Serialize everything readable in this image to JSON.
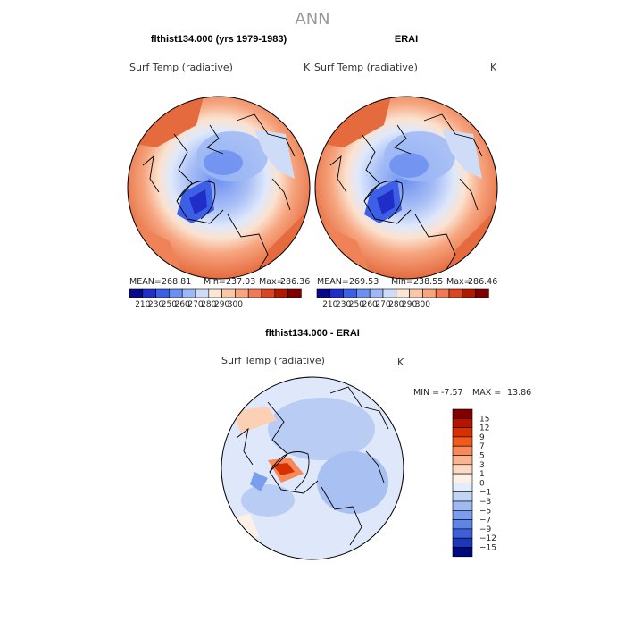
{
  "page_title": "ANN",
  "colors": {
    "scale_abs": [
      "#08088a",
      "#1f2ec6",
      "#3c5fe6",
      "#6c8ff0",
      "#9fb8f5",
      "#cfdcf8",
      "#fbe6d6",
      "#f9c8a8",
      "#f6a57f",
      "#f07a55",
      "#dd4422",
      "#b01a00",
      "#800000"
    ],
    "scale_diff": [
      "#800000",
      "#b51500",
      "#d93000",
      "#f05a1a",
      "#f7895a",
      "#fbb48f",
      "#fdd9c3",
      "#fdf0e6",
      "#e3ecfa",
      "#c2d4f5",
      "#9fbaf0",
      "#7a9ded",
      "#5f84e8",
      "#3e5fd8",
      "#1e36b8",
      "#000a80"
    ]
  },
  "chart_data": [
    {
      "type": "heatmap",
      "panel_title": "flthist134.000 (yrs 1979-1983)",
      "variable": "Surf Temp (radiative)",
      "units": "K",
      "stats": {
        "mean_label": "MEAN=",
        "mean": "268.81",
        "min_label": "Min=",
        "min": "237.03",
        "max_label": "Max=",
        "max": "286.36"
      },
      "colorbar_ticks": [
        "210",
        "230",
        "250",
        "260",
        "270",
        "280",
        "290",
        "300"
      ]
    },
    {
      "type": "heatmap",
      "panel_title": "ERAI",
      "variable": "Surf Temp (radiative)",
      "units": "K",
      "stats": {
        "mean_label": "MEAN=",
        "mean": "269.53",
        "min_label": "Min=",
        "min": "238.55",
        "max_label": "Max=",
        "max": "286.46"
      },
      "colorbar_ticks": [
        "210",
        "230",
        "250",
        "260",
        "270",
        "280",
        "290",
        "300"
      ]
    },
    {
      "type": "heatmap",
      "panel_title": "flthist134.000 - ERAI",
      "variable": "Surf Temp (radiative)",
      "units": "K",
      "stats": {
        "min_label": "MIN =",
        "min": "-7.57",
        "max_label": "MAX =",
        "max": "13.86"
      },
      "colorbar_ticks": [
        "15",
        "12",
        "9",
        "7",
        "5",
        "3",
        "1",
        "0",
        "−1",
        "−3",
        "−5",
        "−7",
        "−9",
        "−12",
        "−15"
      ]
    }
  ]
}
